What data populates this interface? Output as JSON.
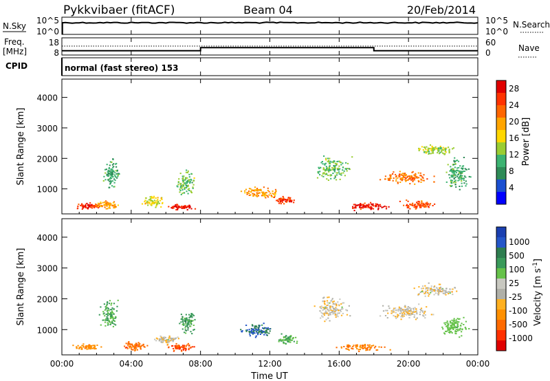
{
  "header": {
    "station": "Pykkvibaer (fitACF)",
    "beam": "Beam 04",
    "date": "20/Feb/2014"
  },
  "top_panel": {
    "left_label": "N.Sky",
    "left_ticks": [
      "10^5",
      "10^0"
    ],
    "right_label": "N.Search",
    "right_ticks": [
      "10^5",
      "10^0"
    ]
  },
  "freq_panel": {
    "left_label_1": "Freq.",
    "left_label_2": "[MHz]",
    "left_ticks": [
      "18",
      "8"
    ],
    "right_label": "Nave",
    "right_ticks": [
      "60",
      "0"
    ]
  },
  "cpid": {
    "label": "CPID",
    "text": "normal (fast stereo) 153"
  },
  "power_panel": {
    "ylabel": "Slant Range [km]",
    "yticks": [
      "4000",
      "3000",
      "2000",
      "1000"
    ],
    "colorbar_label": "Power [dB]",
    "colorbar_ticks": [
      "28",
      "24",
      "20",
      "16",
      "12",
      "8",
      "4"
    ],
    "colors": [
      "#0000ff",
      "#1a4fd1",
      "#2e8b57",
      "#3cb371",
      "#9acd32",
      "#ffd700",
      "#ffa500",
      "#ff6600",
      "#ff3300",
      "#e00000"
    ]
  },
  "velocity_panel": {
    "ylabel": "Slant Range [km]",
    "yticks": [
      "4000",
      "3000",
      "2000",
      "1000"
    ],
    "colorbar_label": "Velocity [m s^-1]",
    "colorbar_ticks": [
      "1000",
      "500",
      "100",
      "25",
      "-25",
      "-100",
      "-500",
      "-1000"
    ],
    "colors": [
      "#1a3fb0",
      "#2456c8",
      "#2e7d4f",
      "#3a9a5a",
      "#66c24a",
      "#c8c8c0",
      "#b0b0a8",
      "#ffb020",
      "#ff9000",
      "#ff6a00",
      "#ff3000",
      "#e00000"
    ]
  },
  "xaxis": {
    "label": "Time UT",
    "ticks": [
      "00:00",
      "04:00",
      "08:00",
      "12:00",
      "16:00",
      "20:00",
      "00:00"
    ]
  },
  "chart_data": {
    "type": "heatmap",
    "title": "Pykkvibaer (fitACF) Beam 04 20/Feb/2014",
    "xlabel": "Time UT",
    "ylabel": "Slant Range [km]",
    "xlim_hours": [
      0,
      24
    ],
    "ylim_km": [
      180,
      4600
    ],
    "frequency_MHz": [
      {
        "from_hour": 0,
        "to_hour": 8,
        "value": 10.5
      },
      {
        "from_hour": 8,
        "to_hour": 18,
        "value": 12.3
      },
      {
        "from_hour": 18,
        "to_hour": 24,
        "value": 10.5
      }
    ],
    "power_blobs": [
      {
        "t": 1.5,
        "r": 450,
        "dt": 1.1,
        "dr": 120,
        "p": 26
      },
      {
        "t": 2.6,
        "r": 500,
        "dt": 0.9,
        "dr": 150,
        "p": 20
      },
      {
        "t": 2.8,
        "r": 1500,
        "dt": 0.6,
        "dr": 600,
        "p": 10
      },
      {
        "t": 6.8,
        "r": 420,
        "dt": 1.0,
        "dr": 120,
        "p": 27
      },
      {
        "t": 5.2,
        "r": 600,
        "dt": 0.8,
        "dr": 250,
        "p": 16
      },
      {
        "t": 7.1,
        "r": 1200,
        "dt": 0.7,
        "dr": 500,
        "p": 12
      },
      {
        "t": 11.4,
        "r": 900,
        "dt": 1.4,
        "dr": 250,
        "p": 20
      },
      {
        "t": 12.8,
        "r": 650,
        "dt": 0.8,
        "dr": 150,
        "p": 26
      },
      {
        "t": 15.6,
        "r": 1700,
        "dt": 1.2,
        "dr": 500,
        "p": 12
      },
      {
        "t": 17.5,
        "r": 450,
        "dt": 1.8,
        "dr": 150,
        "p": 27
      },
      {
        "t": 19.8,
        "r": 1400,
        "dt": 2.0,
        "dr": 250,
        "p": 22
      },
      {
        "t": 20.5,
        "r": 500,
        "dt": 1.2,
        "dr": 200,
        "p": 24
      },
      {
        "t": 21.5,
        "r": 2300,
        "dt": 1.6,
        "dr": 200,
        "p": 14
      },
      {
        "t": 22.8,
        "r": 1500,
        "dt": 0.9,
        "dr": 700,
        "p": 10
      }
    ],
    "velocity_blobs": [
      {
        "t": 1.5,
        "r": 450,
        "dt": 1.1,
        "dr": 120,
        "v": -200
      },
      {
        "t": 2.7,
        "r": 1500,
        "dt": 0.6,
        "dr": 600,
        "v": 300
      },
      {
        "t": 4.2,
        "r": 500,
        "dt": 0.9,
        "dr": 180,
        "v": -400
      },
      {
        "t": 6.8,
        "r": 450,
        "dt": 1.0,
        "dr": 150,
        "v": -500
      },
      {
        "t": 6.0,
        "r": 700,
        "dt": 0.9,
        "dr": 200,
        "v": 0
      },
      {
        "t": 7.2,
        "r": 1300,
        "dt": 0.6,
        "dr": 500,
        "v": 400
      },
      {
        "t": 11.3,
        "r": 1000,
        "dt": 1.3,
        "dr": 300,
        "v": 700
      },
      {
        "t": 13.0,
        "r": 700,
        "dt": 0.7,
        "dr": 200,
        "v": 300
      },
      {
        "t": 15.5,
        "r": 1700,
        "dt": 1.2,
        "dr": 500,
        "v": 0
      },
      {
        "t": 17.3,
        "r": 450,
        "dt": 1.8,
        "dr": 150,
        "v": -300
      },
      {
        "t": 19.8,
        "r": 1600,
        "dt": 2.0,
        "dr": 300,
        "v": 0
      },
      {
        "t": 21.5,
        "r": 2300,
        "dt": 1.6,
        "dr": 250,
        "v": 0
      },
      {
        "t": 22.6,
        "r": 1100,
        "dt": 1.1,
        "dr": 400,
        "v": 200
      }
    ]
  }
}
